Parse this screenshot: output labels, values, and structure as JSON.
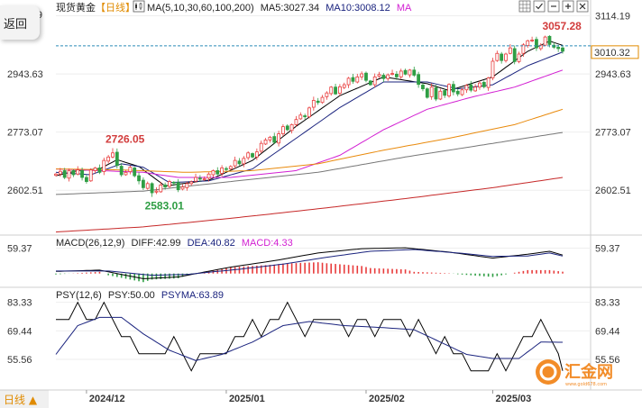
{
  "app": {
    "back_label": "返回",
    "period_label": "日线 ▲",
    "logo_text": "汇金网",
    "logo_url_text": "www.gold678.com"
  },
  "header": {
    "instrument": "现货黄金",
    "timeframe": "【日线】",
    "ma_params": "MA(5,10,30,60,100,200)",
    "ma5": "MA5:3027.34",
    "ma10": "MA10:3008.12",
    "ma_more": "MA"
  },
  "toolbar_icons": [
    "candlestick-icon",
    "grid-icon",
    "checkbox-icon",
    "minimize-icon",
    "maximize-icon",
    "close-icon"
  ],
  "colors": {
    "up": "#e83b3b",
    "down": "#2f9e44",
    "ma5": "#000000",
    "ma10": "#1a237e",
    "ma30": "#d21fd2",
    "ma60": "#e98a0c",
    "ma100": "#777777",
    "ma200": "#c62828",
    "diff": "#000000",
    "dea": "#1a237e",
    "psy": "#000000",
    "psyma": "#1a237e"
  },
  "chart_data": [
    {
      "type": "candlestick",
      "title": "现货黄金【日线】",
      "ylim": [
        2500,
        3150
      ],
      "yticks": [
        {
          "value": 3114.19,
          "label": "3114.19"
        },
        {
          "value": 2943.63,
          "label": "2943.63"
        },
        {
          "value": 2773.07,
          "label": "2773.07"
        },
        {
          "value": 2602.51,
          "label": "2602.51"
        }
      ],
      "x_labels": [
        {
          "index": 7,
          "label": "2024/12"
        },
        {
          "index": 39,
          "label": "2025/01"
        },
        {
          "index": 71,
          "label": "2025/02"
        },
        {
          "index": 100,
          "label": "2025/03"
        }
      ],
      "last_price": {
        "value": 3010.32,
        "label": "3010.32"
      },
      "annotations": [
        {
          "index": 13,
          "value": 2726.05,
          "label": "2726.05",
          "kind": "high"
        },
        {
          "index": 22,
          "value": 2583.01,
          "label": "2583.01",
          "kind": "low"
        },
        {
          "index": 113,
          "value": 3057.28,
          "label": "3057.28",
          "kind": "high"
        }
      ],
      "closes": [
        2650,
        2658,
        2640,
        2660,
        2648,
        2662,
        2640,
        2628,
        2662,
        2668,
        2655,
        2690,
        2700,
        2712,
        2675,
        2648,
        2655,
        2670,
        2645,
        2630,
        2610,
        2622,
        2595,
        2600,
        2618,
        2612,
        2628,
        2625,
        2604,
        2612,
        2622,
        2627,
        2640,
        2635,
        2636,
        2650,
        2660,
        2650,
        2668,
        2665,
        2672,
        2690,
        2680,
        2696,
        2712,
        2700,
        2715,
        2740,
        2750,
        2758,
        2743,
        2768,
        2789,
        2780,
        2795,
        2810,
        2823,
        2818,
        2844,
        2866,
        2860,
        2875,
        2888,
        2905,
        2885,
        2906,
        2912,
        2931,
        2922,
        2935,
        2944,
        2925,
        2912,
        2935,
        2942,
        2930,
        2941,
        2945,
        2935,
        2952,
        2943,
        2955,
        2940,
        2913,
        2900,
        2875,
        2905,
        2870,
        2893,
        2881,
        2913,
        2891,
        2885,
        2897,
        2910,
        2896,
        2905,
        2917,
        2906,
        2932,
        2981,
        3004,
        2983,
        3002,
        3020,
        2980,
        3002,
        3029,
        3041,
        3043,
        3020,
        3028,
        3052,
        3030,
        3022,
        3018,
        3010.32
      ],
      "series": [
        {
          "name": "MA5",
          "label": "MA5:3027.34",
          "color": "#000000",
          "anchors": [
            [
              0,
              2645
            ],
            [
              5,
              2660
            ],
            [
              10,
              2665
            ],
            [
              14,
              2692
            ],
            [
              19,
              2672
            ],
            [
              25,
              2615
            ],
            [
              35,
              2632
            ],
            [
              45,
              2690
            ],
            [
              55,
              2790
            ],
            [
              65,
              2880
            ],
            [
              75,
              2935
            ],
            [
              85,
              2915
            ],
            [
              90,
              2895
            ],
            [
              100,
              2935
            ],
            [
              108,
              3010
            ],
            [
              113,
              3040
            ],
            [
              116,
              3027.34
            ]
          ]
        },
        {
          "name": "MA10",
          "label": "MA10:3008.12",
          "color": "#1a237e",
          "anchors": [
            [
              0,
              2655
            ],
            [
              8,
              2648
            ],
            [
              15,
              2680
            ],
            [
              20,
              2670
            ],
            [
              26,
              2625
            ],
            [
              35,
              2630
            ],
            [
              45,
              2665
            ],
            [
              55,
              2755
            ],
            [
              65,
              2845
            ],
            [
              75,
              2920
            ],
            [
              85,
              2920
            ],
            [
              92,
              2900
            ],
            [
              100,
              2912
            ],
            [
              108,
              2968
            ],
            [
              116,
              3008.12
            ]
          ]
        },
        {
          "name": "MA30",
          "label": "MA30",
          "color": "#d21fd2",
          "anchors": [
            [
              0,
              2665
            ],
            [
              20,
              2655
            ],
            [
              28,
              2640
            ],
            [
              40,
              2640
            ],
            [
              55,
              2660
            ],
            [
              65,
              2705
            ],
            [
              75,
              2780
            ],
            [
              85,
              2840
            ],
            [
              95,
              2875
            ],
            [
              105,
              2905
            ],
            [
              116,
              2955
            ]
          ]
        },
        {
          "name": "MA60",
          "label": "MA60",
          "color": "#e98a0c",
          "anchors": [
            [
              0,
              2665
            ],
            [
              15,
              2662
            ],
            [
              30,
              2655
            ],
            [
              45,
              2660
            ],
            [
              60,
              2680
            ],
            [
              75,
              2720
            ],
            [
              90,
              2755
            ],
            [
              105,
              2795
            ],
            [
              116,
              2840
            ]
          ]
        },
        {
          "name": "MA100",
          "label": "MA100",
          "color": "#777777",
          "anchors": [
            [
              0,
              2590
            ],
            [
              20,
              2600
            ],
            [
              40,
              2628
            ],
            [
              60,
              2655
            ],
            [
              80,
              2700
            ],
            [
              100,
              2740
            ],
            [
              116,
              2772
            ]
          ]
        },
        {
          "name": "MA200",
          "label": "MA200",
          "color": "#c62828",
          "anchors": [
            [
              0,
              2480
            ],
            [
              20,
              2495
            ],
            [
              40,
              2520
            ],
            [
              60,
              2548
            ],
            [
              80,
              2578
            ],
            [
              100,
              2610
            ],
            [
              116,
              2640
            ]
          ]
        }
      ]
    },
    {
      "type": "macd",
      "title": "MACD(26,12,9)",
      "legend": {
        "params": "MACD(26,12,9)",
        "diff": "DIFF:42.99",
        "dea": "DEA:40.82",
        "macd": "MACD:4.33"
      },
      "ylim": [
        -30,
        75
      ],
      "yticks": [
        {
          "value": 59.37,
          "label": "59.37"
        }
      ],
      "series": [
        {
          "name": "DIFF",
          "color": "#000000",
          "anchors": [
            [
              0,
              5
            ],
            [
              10,
              8
            ],
            [
              20,
              -12
            ],
            [
              28,
              -8
            ],
            [
              40,
              15
            ],
            [
              50,
              30
            ],
            [
              60,
              48
            ],
            [
              70,
              58
            ],
            [
              80,
              60
            ],
            [
              90,
              50
            ],
            [
              100,
              36
            ],
            [
              108,
              45
            ],
            [
              113,
              52
            ],
            [
              116,
              42.99
            ]
          ]
        },
        {
          "name": "DEA",
          "color": "#1a237e",
          "anchors": [
            [
              0,
              6
            ],
            [
              12,
              6
            ],
            [
              22,
              -4
            ],
            [
              30,
              -2
            ],
            [
              42,
              10
            ],
            [
              52,
              22
            ],
            [
              62,
              38
            ],
            [
              72,
              52
            ],
            [
              82,
              56
            ],
            [
              92,
              48
            ],
            [
              100,
              40
            ],
            [
              108,
              41
            ],
            [
              113,
              48
            ],
            [
              116,
              40.82
            ]
          ]
        }
      ]
    },
    {
      "type": "psy",
      "title": "PSY(12,6)",
      "legend": {
        "params": "PSY(12,6)",
        "psy": "PSY:50.00",
        "psyma": "PSYMA:63.89"
      },
      "ylim": [
        42,
        88
      ],
      "yticks": [
        {
          "value": 83.33,
          "label": "83.33"
        },
        {
          "value": 69.44,
          "label": "69.44"
        },
        {
          "value": 55.56,
          "label": "55.56"
        }
      ],
      "psy_anchors": [
        [
          0,
          75
        ],
        [
          3,
          75
        ],
        [
          5,
          83.33
        ],
        [
          7,
          75
        ],
        [
          9,
          75
        ],
        [
          11,
          83.33
        ],
        [
          13,
          75
        ],
        [
          15,
          66.67
        ],
        [
          17,
          66.67
        ],
        [
          19,
          58.33
        ],
        [
          21,
          58.33
        ],
        [
          23,
          58.33
        ],
        [
          25,
          58.33
        ],
        [
          27,
          66.67
        ],
        [
          29,
          58.33
        ],
        [
          31,
          50
        ],
        [
          33,
          58.33
        ],
        [
          35,
          58.33
        ],
        [
          37,
          58.33
        ],
        [
          39,
          58.33
        ],
        [
          41,
          66.67
        ],
        [
          43,
          66.67
        ],
        [
          45,
          75
        ],
        [
          47,
          66.67
        ],
        [
          49,
          75
        ],
        [
          51,
          75
        ],
        [
          53,
          83.33
        ],
        [
          55,
          75
        ],
        [
          57,
          66.67
        ],
        [
          59,
          75
        ],
        [
          61,
          75
        ],
        [
          63,
          75
        ],
        [
          65,
          75
        ],
        [
          67,
          66.67
        ],
        [
          69,
          75
        ],
        [
          71,
          75
        ],
        [
          73,
          66.67
        ],
        [
          75,
          75
        ],
        [
          77,
          75
        ],
        [
          79,
          75
        ],
        [
          81,
          66.67
        ],
        [
          83,
          75
        ],
        [
          85,
          66.67
        ],
        [
          87,
          58.33
        ],
        [
          89,
          66.67
        ],
        [
          91,
          58.33
        ],
        [
          93,
          58.33
        ],
        [
          95,
          50
        ],
        [
          97,
          50
        ],
        [
          99,
          50
        ],
        [
          101,
          58.33
        ],
        [
          103,
          50
        ],
        [
          105,
          58.33
        ],
        [
          107,
          66.67
        ],
        [
          109,
          66.67
        ],
        [
          111,
          75
        ],
        [
          113,
          66.67
        ],
        [
          115,
          58.33
        ],
        [
          116,
          50
        ]
      ],
      "psyma_anchors": [
        [
          0,
          58
        ],
        [
          5,
          72
        ],
        [
          10,
          76
        ],
        [
          15,
          76
        ],
        [
          20,
          68
        ],
        [
          26,
          60
        ],
        [
          32,
          55
        ],
        [
          38,
          58
        ],
        [
          45,
          64
        ],
        [
          52,
          72
        ],
        [
          58,
          74
        ],
        [
          66,
          72
        ],
        [
          75,
          71
        ],
        [
          82,
          70
        ],
        [
          88,
          64
        ],
        [
          94,
          58
        ],
        [
          100,
          56
        ],
        [
          106,
          56
        ],
        [
          111,
          64
        ],
        [
          116,
          63.89
        ]
      ]
    }
  ]
}
